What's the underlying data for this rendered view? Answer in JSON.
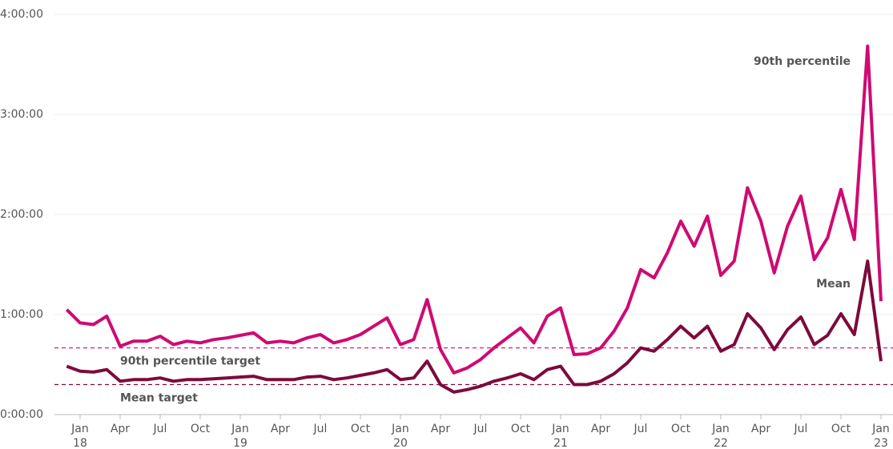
{
  "chart_data": {
    "type": "line",
    "x": [
      "2017-12",
      "2018-01",
      "2018-02",
      "2018-03",
      "2018-04",
      "2018-05",
      "2018-06",
      "2018-07",
      "2018-08",
      "2018-09",
      "2018-10",
      "2018-11",
      "2018-12",
      "2019-01",
      "2019-02",
      "2019-03",
      "2019-04",
      "2019-05",
      "2019-06",
      "2019-07",
      "2019-08",
      "2019-09",
      "2019-10",
      "2019-11",
      "2019-12",
      "2020-01",
      "2020-02",
      "2020-03",
      "2020-04",
      "2020-05",
      "2020-06",
      "2020-07",
      "2020-08",
      "2020-09",
      "2020-10",
      "2020-11",
      "2020-12",
      "2021-01",
      "2021-02",
      "2021-03",
      "2021-04",
      "2021-05",
      "2021-06",
      "2021-07",
      "2021-08",
      "2021-09",
      "2021-10",
      "2021-11",
      "2021-12",
      "2022-01",
      "2022-02",
      "2022-03",
      "2022-04",
      "2022-05",
      "2022-06",
      "2022-07",
      "2022-08",
      "2022-09",
      "2022-10",
      "2022-11",
      "2022-12",
      "2023-01"
    ],
    "series": [
      {
        "name": "90th percentile",
        "color": "#cf0a72",
        "values": [
          63,
          55,
          54,
          59,
          41,
          44,
          44,
          47,
          42,
          44,
          43,
          45,
          46,
          47.5,
          49,
          43,
          44,
          43,
          46,
          48,
          43,
          45,
          48,
          53,
          58,
          42,
          45,
          69,
          39,
          25,
          28,
          33,
          40,
          46,
          52,
          43,
          59,
          64,
          36,
          36.5,
          40,
          50,
          64,
          87,
          82,
          97,
          116,
          101,
          119,
          83.5,
          92,
          136,
          116,
          85,
          113,
          131,
          93,
          106,
          135,
          105,
          221,
          68
        ]
      },
      {
        "name": "Mean",
        "color": "#7d0a3c",
        "values": [
          29,
          26,
          25.5,
          27,
          20,
          21,
          21,
          22,
          20,
          21,
          21,
          21.5,
          22,
          22.5,
          23,
          21,
          21,
          21,
          22.5,
          23,
          21,
          22,
          23.5,
          25,
          27,
          21,
          22,
          32,
          18,
          13.5,
          15,
          17,
          20,
          22,
          24.5,
          21,
          27,
          29,
          18,
          18,
          20,
          24.5,
          31,
          40,
          38,
          45,
          53,
          46,
          53,
          38,
          42,
          60.5,
          52,
          39,
          51,
          58.5,
          42,
          47.5,
          60.5,
          48,
          92,
          32
        ]
      }
    ],
    "targets": [
      {
        "name": "90th percentile target",
        "color": "#cf0a72",
        "value": 40
      },
      {
        "name": "Mean target",
        "color": "#7d0a3c",
        "value": 18
      }
    ],
    "ylim": [
      0,
      240
    ],
    "yticks": [
      {
        "value": 0,
        "label": "0:00:00"
      },
      {
        "value": 60,
        "label": "1:00:00"
      },
      {
        "value": 120,
        "label": "2:00:00"
      },
      {
        "value": 180,
        "label": "3:00:00"
      },
      {
        "value": 240,
        "label": "4:00:00"
      }
    ],
    "xlim": [
      "2017-12",
      "2023-01"
    ],
    "xticks": [
      {
        "value": "2018-01",
        "label": "Jan",
        "year": "18"
      },
      {
        "value": "2018-04",
        "label": "Apr"
      },
      {
        "value": "2018-07",
        "label": "Jul"
      },
      {
        "value": "2018-10",
        "label": "Oct"
      },
      {
        "value": "2019-01",
        "label": "Jan",
        "year": "19"
      },
      {
        "value": "2019-04",
        "label": "Apr"
      },
      {
        "value": "2019-07",
        "label": "Jul"
      },
      {
        "value": "2019-10",
        "label": "Oct"
      },
      {
        "value": "2020-01",
        "label": "Jan",
        "year": "20"
      },
      {
        "value": "2020-04",
        "label": "Apr"
      },
      {
        "value": "2020-07",
        "label": "Jul"
      },
      {
        "value": "2020-10",
        "label": "Oct"
      },
      {
        "value": "2021-01",
        "label": "Jan",
        "year": "21"
      },
      {
        "value": "2021-04",
        "label": "Apr"
      },
      {
        "value": "2021-07",
        "label": "Jul"
      },
      {
        "value": "2021-10",
        "label": "Oct"
      },
      {
        "value": "2022-01",
        "label": "Jan",
        "year": "22"
      },
      {
        "value": "2022-04",
        "label": "Apr"
      },
      {
        "value": "2022-07",
        "label": "Jul"
      },
      {
        "value": "2022-10",
        "label": "Oct"
      },
      {
        "value": "2023-01",
        "label": "Jan",
        "year": "23"
      }
    ],
    "grid": true
  }
}
